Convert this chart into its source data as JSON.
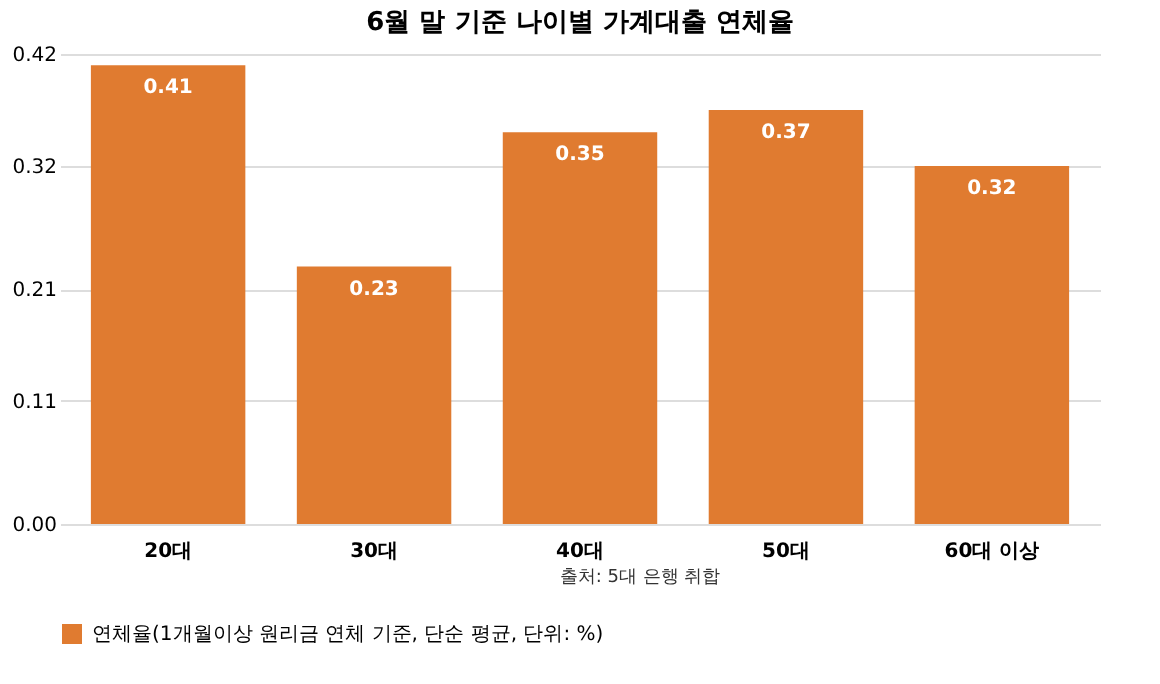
{
  "chart_data": {
    "type": "bar",
    "title": "6월 말 기준 나이별 가계대출 연체율",
    "categories": [
      "20대",
      "30대",
      "40대",
      "50대",
      "60대 이상"
    ],
    "series": [
      {
        "name": "연체율(1개월이상 원리금 연체 기준, 단순 평균, 단위: %)",
        "color": "#e07b30",
        "values": [
          0.41,
          0.23,
          0.35,
          0.37,
          0.32
        ]
      }
    ],
    "ylim": [
      0,
      0.42
    ],
    "yticks": [
      {
        "value": 0,
        "label": "0.00"
      },
      0.11,
      0.21,
      0.32,
      0.42
    ],
    "grid": "y",
    "legend": "bottom",
    "data_labels": true,
    "annotations": [
      "출처: 5대 은행 취합"
    ]
  }
}
